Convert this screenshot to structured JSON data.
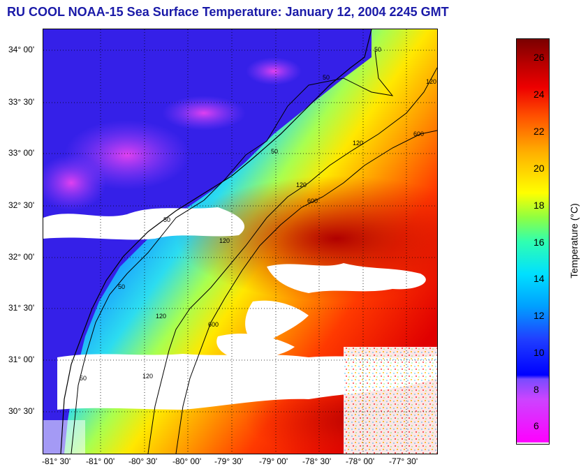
{
  "title": "RU COOL  NOAA-15  Sea Surface Temperature:  January 12, 2004 2245 GMT",
  "lat_labels": [
    "34° 00'",
    "33° 30'",
    "33° 00'",
    "32° 30'",
    "32° 00'",
    "31° 30'",
    "31° 00'",
    "30° 30'"
  ],
  "lon_labels": [
    "-81° 30'",
    "-81° 00'",
    "-80° 30'",
    "-80° 00'",
    "-79° 30'",
    "-79° 00'",
    "-78° 30'",
    "-78° 00'",
    "-77° 30'"
  ],
  "colorbar": {
    "label": "Temperature (°C)",
    "ticks": [
      "26",
      "24",
      "22",
      "20",
      "18",
      "16",
      "14",
      "12",
      "10",
      "8",
      "6"
    ],
    "range": [
      5,
      27
    ]
  },
  "isobath_labels": [
    "50",
    "50",
    "50",
    "50",
    "50",
    "50",
    "120",
    "120",
    "120",
    "120",
    "120",
    "120",
    "600",
    "600",
    "600"
  ]
}
